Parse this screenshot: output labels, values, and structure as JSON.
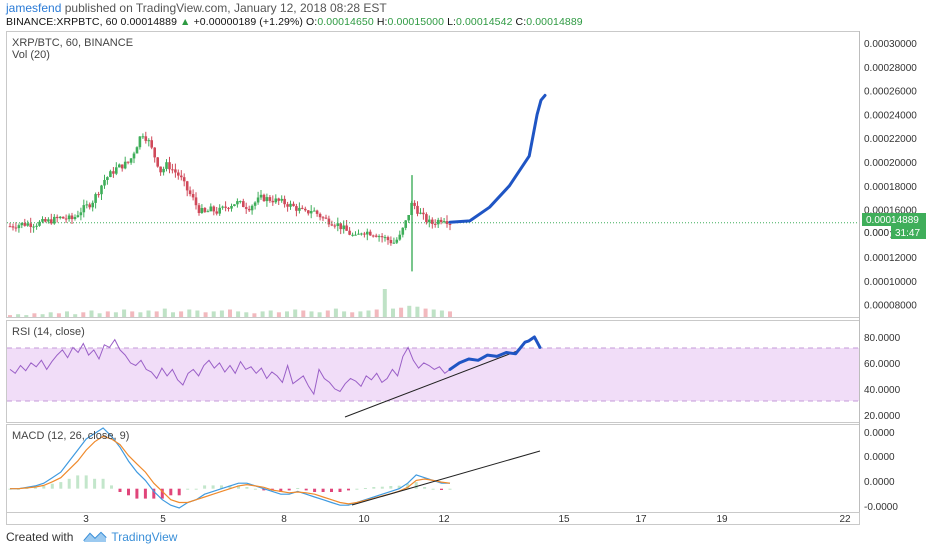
{
  "header": {
    "user": "jamesfend",
    "published": "published on TradingView.com, January 12, 2018 08:28 EST",
    "symbol": "BINANCE:XRPBTC, 60",
    "last": "0.00014889",
    "change_arrow": "▲",
    "change": "+0.00000189 (+1.29%)",
    "open_label": "O:",
    "open": "0.00014650",
    "high_label": "H:",
    "high": "0.00015000",
    "low_label": "L:",
    "low": "0.00014542",
    "close_label": "C:",
    "close": "0.00014889"
  },
  "panes": {
    "main_title": "XRP/BTC, 60, BINANCE",
    "vol_title": "Vol (20)",
    "rsi_title": "RSI (14, close)",
    "macd_title": "MACD (12, 26, close, 9)"
  },
  "price_badge": {
    "value": "0.00014889",
    "partial": "0.000",
    "timer": "31:47"
  },
  "footer": {
    "created": "Created with",
    "brand": "TradingView",
    "logo_icon": "tradingview-logo-icon"
  },
  "colors": {
    "up": "#3fae5a",
    "down": "#d0495a",
    "drawing": "#1f55c4",
    "rsi_band": "#f1ddf8",
    "rsi_line": "#9a5fc7",
    "macd_line": "#3f9ae0",
    "signal_line": "#ef8a2c"
  },
  "chart_data": [
    {
      "type": "candlestick",
      "pane": "price",
      "y_ticks": [
        "0.00030000",
        "0.00028000",
        "0.00026000",
        "0.00024000",
        "0.00022000",
        "0.00020000",
        "0.00018000",
        "0.00016000",
        "0.00014000",
        "0.00012000",
        "0.00010000",
        "0.00008000"
      ],
      "ylim": [
        7.3e-05,
        0.000306
      ],
      "x_labels": [
        "3",
        "5",
        "8",
        "10",
        "12",
        "15",
        "17",
        "19",
        "22"
      ],
      "approx_close_path": [
        [
          0,
          0.000146
        ],
        [
          4,
          0.000148
        ],
        [
          8,
          0.000148
        ],
        [
          12,
          0.00015
        ],
        [
          16,
          0.000153
        ],
        [
          20,
          0.000152
        ],
        [
          22,
          0.000158
        ],
        [
          26,
          0.000166
        ],
        [
          28,
          0.000175
        ],
        [
          30,
          0.000185
        ],
        [
          34,
          0.000195
        ],
        [
          38,
          0.0002
        ],
        [
          40,
          0.000212
        ],
        [
          42,
          0.000225
        ],
        [
          44,
          0.000218
        ],
        [
          46,
          0.000205
        ],
        [
          48,
          0.000192
        ],
        [
          50,
          0.000198
        ],
        [
          54,
          0.000188
        ],
        [
          56,
          0.000178
        ],
        [
          58,
          0.00017
        ],
        [
          60,
          0.00016
        ],
        [
          62,
          0.000157
        ],
        [
          64,
          0.00016
        ],
        [
          66,
          0.000158
        ],
        [
          70,
          0.000164
        ],
        [
          72,
          0.000166
        ],
        [
          76,
          0.000162
        ],
        [
          80,
          0.00017
        ],
        [
          84,
          0.000168
        ],
        [
          88,
          0.000165
        ],
        [
          92,
          0.00016
        ],
        [
          94,
          0.000157
        ],
        [
          96,
          0.00016
        ],
        [
          100,
          0.000152
        ],
        [
          104,
          0.000148
        ],
        [
          108,
          0.00014
        ],
        [
          110,
          0.000136
        ],
        [
          112,
          0.000142
        ],
        [
          116,
          0.00014
        ],
        [
          120,
          0.000135
        ],
        [
          122,
          0.000132
        ],
        [
          124,
          0.000137
        ],
        [
          126,
          0.00015
        ],
        [
          128,
          0.000166
        ],
        [
          130,
          0.000158
        ],
        [
          132,
          0.000152
        ],
        [
          134,
          0.000148
        ],
        [
          138,
          0.000153
        ],
        [
          140,
          0.000149
        ]
      ],
      "last_price": 0.00014889
    },
    {
      "type": "line",
      "pane": "price",
      "series": [
        {
          "name": "",
          "kind": "drawing",
          "x": [
            0,
            10,
            20,
            30,
            40,
            44,
            46,
            48
          ],
          "y": [
            0.0001493,
            0.0001505,
            0.000162,
            0.00018,
            0.000205,
            0.00024,
            0.000252,
            0.000256
          ]
        }
      ]
    },
    {
      "type": "bar",
      "pane": "volume",
      "values": [
        2,
        3,
        2,
        4,
        3,
        5,
        4,
        6,
        3,
        5,
        7,
        4,
        6,
        5,
        8,
        6,
        5,
        7,
        6,
        9,
        5,
        6,
        8,
        7,
        5,
        6,
        7,
        8,
        6,
        5,
        4,
        6,
        7,
        5,
        6,
        8,
        7,
        6,
        5,
        7,
        9,
        6,
        5,
        6,
        7,
        8,
        30,
        9,
        10,
        12,
        11,
        9,
        8,
        7,
        6
      ]
    },
    {
      "type": "line",
      "pane": "rsi",
      "y_ticks": [
        "80.0000",
        "60.0000",
        "40.0000",
        "20.0000"
      ],
      "ylim": [
        16,
        90
      ],
      "bands": [
        30,
        70
      ],
      "series": [
        {
          "name": "",
          "values": [
            55,
            52,
            58,
            54,
            60,
            57,
            62,
            55,
            61,
            66,
            70,
            64,
            72,
            68,
            75,
            66,
            70,
            63,
            74,
            72,
            78,
            70,
            66,
            60,
            58,
            62,
            55,
            53,
            48,
            56,
            50,
            55,
            47,
            43,
            52,
            55,
            50,
            58,
            62,
            56,
            60,
            53,
            58,
            52,
            61,
            55,
            57,
            52,
            56,
            48,
            53,
            50,
            45,
            58,
            44,
            47,
            50,
            42,
            36,
            55,
            48,
            45,
            40,
            38,
            44,
            48,
            46,
            42,
            50,
            47,
            52,
            45,
            48,
            55,
            50,
            65,
            72,
            62,
            56,
            60,
            58,
            55,
            57,
            52,
            55
          ]
        }
      ]
    },
    {
      "type": "line",
      "pane": "rsi",
      "series": [
        {
          "name": "",
          "kind": "drawing",
          "x": [
            0,
            5,
            10,
            15,
            20,
            25,
            30,
            35,
            40,
            42,
            45,
            48
          ],
          "y": [
            55,
            60,
            63,
            62,
            66,
            65,
            68,
            67,
            76,
            77,
            80,
            72
          ]
        }
      ]
    },
    {
      "type": "line",
      "pane": "macd",
      "y_ticks": [
        "0.0000",
        "0.0000",
        "0.0000",
        "-0.0000"
      ],
      "series": [
        {
          "name": "",
          "kind": "macd",
          "values": [
            0,
            0,
            0.5,
            1,
            2,
            4,
            6,
            10,
            14,
            18,
            20,
            22,
            19,
            15,
            10,
            6,
            3,
            -1,
            -4,
            -6,
            -7,
            -5,
            -4,
            -2,
            -1,
            0,
            1,
            2,
            2,
            1,
            0,
            -1,
            -2,
            -2,
            -1,
            -2,
            -3,
            -4,
            -5,
            -6,
            -6,
            -5,
            -4,
            -3,
            -2,
            -1,
            0,
            2,
            5,
            4,
            3,
            2,
            2
          ]
        },
        {
          "name": "",
          "kind": "signal",
          "values": [
            0,
            0,
            0.3,
            0.6,
            1.2,
            2.5,
            4,
            7,
            10,
            14,
            17,
            19,
            18,
            16,
            12,
            9,
            6,
            2,
            -1,
            -4,
            -5,
            -5,
            -4,
            -3,
            -2,
            -1,
            0,
            1,
            1.5,
            1,
            0.5,
            -0.5,
            -1,
            -1.5,
            -1.2,
            -1.5,
            -2,
            -3,
            -4,
            -5,
            -5.5,
            -5,
            -4.2,
            -3.5,
            -2.6,
            -1.8,
            -0.9,
            0.5,
            3,
            3.5,
            3,
            2.4,
            2
          ]
        }
      ]
    }
  ]
}
